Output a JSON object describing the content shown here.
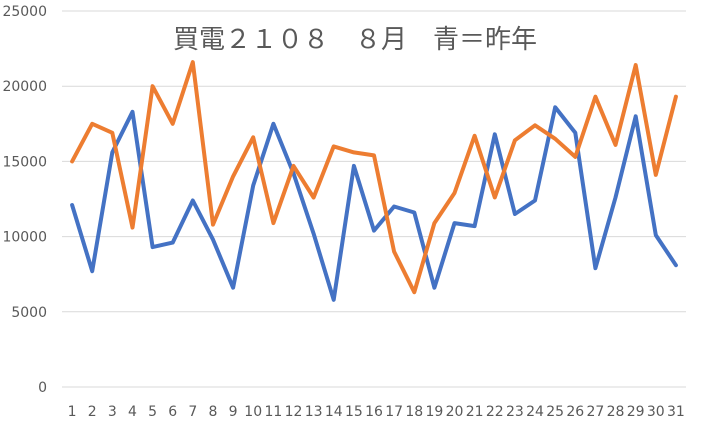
{
  "chart_data": {
    "type": "line",
    "title": "買電２１０８　８月　青＝昨年",
    "xlabel": "",
    "ylabel": "",
    "ylim": [
      0,
      25000
    ],
    "yticks": [
      0,
      5000,
      10000,
      15000,
      20000,
      25000
    ],
    "grid": true,
    "legend": "none",
    "categories": [
      "1",
      "2",
      "3",
      "4",
      "5",
      "6",
      "7",
      "8",
      "9",
      "10",
      "11",
      "12",
      "13",
      "14",
      "15",
      "16",
      "17",
      "18",
      "19",
      "20",
      "21",
      "22",
      "23",
      "24",
      "25",
      "26",
      "27",
      "28",
      "29",
      "30",
      "31"
    ],
    "series": [
      {
        "color": "#4472c4",
        "values": [
          12100,
          7700,
          15600,
          18300,
          9300,
          9600,
          12400,
          9800,
          6600,
          13400,
          17500,
          14200,
          10200,
          5800,
          14700,
          10400,
          12000,
          11600,
          6600,
          10900,
          10700,
          16800,
          11500,
          12400,
          18600,
          16900,
          7900,
          12600,
          18000,
          10100,
          8100
        ]
      },
      {
        "color": "#ed7d31",
        "values": [
          15000,
          17500,
          16900,
          10600,
          20000,
          17500,
          21600,
          10800,
          14000,
          16600,
          10900,
          14700,
          12600,
          16000,
          15600,
          15400,
          9000,
          6300,
          10900,
          12900,
          16700,
          12600,
          16400,
          17400,
          16500,
          15300,
          19300,
          16100,
          21400,
          14100,
          19300
        ]
      }
    ]
  }
}
